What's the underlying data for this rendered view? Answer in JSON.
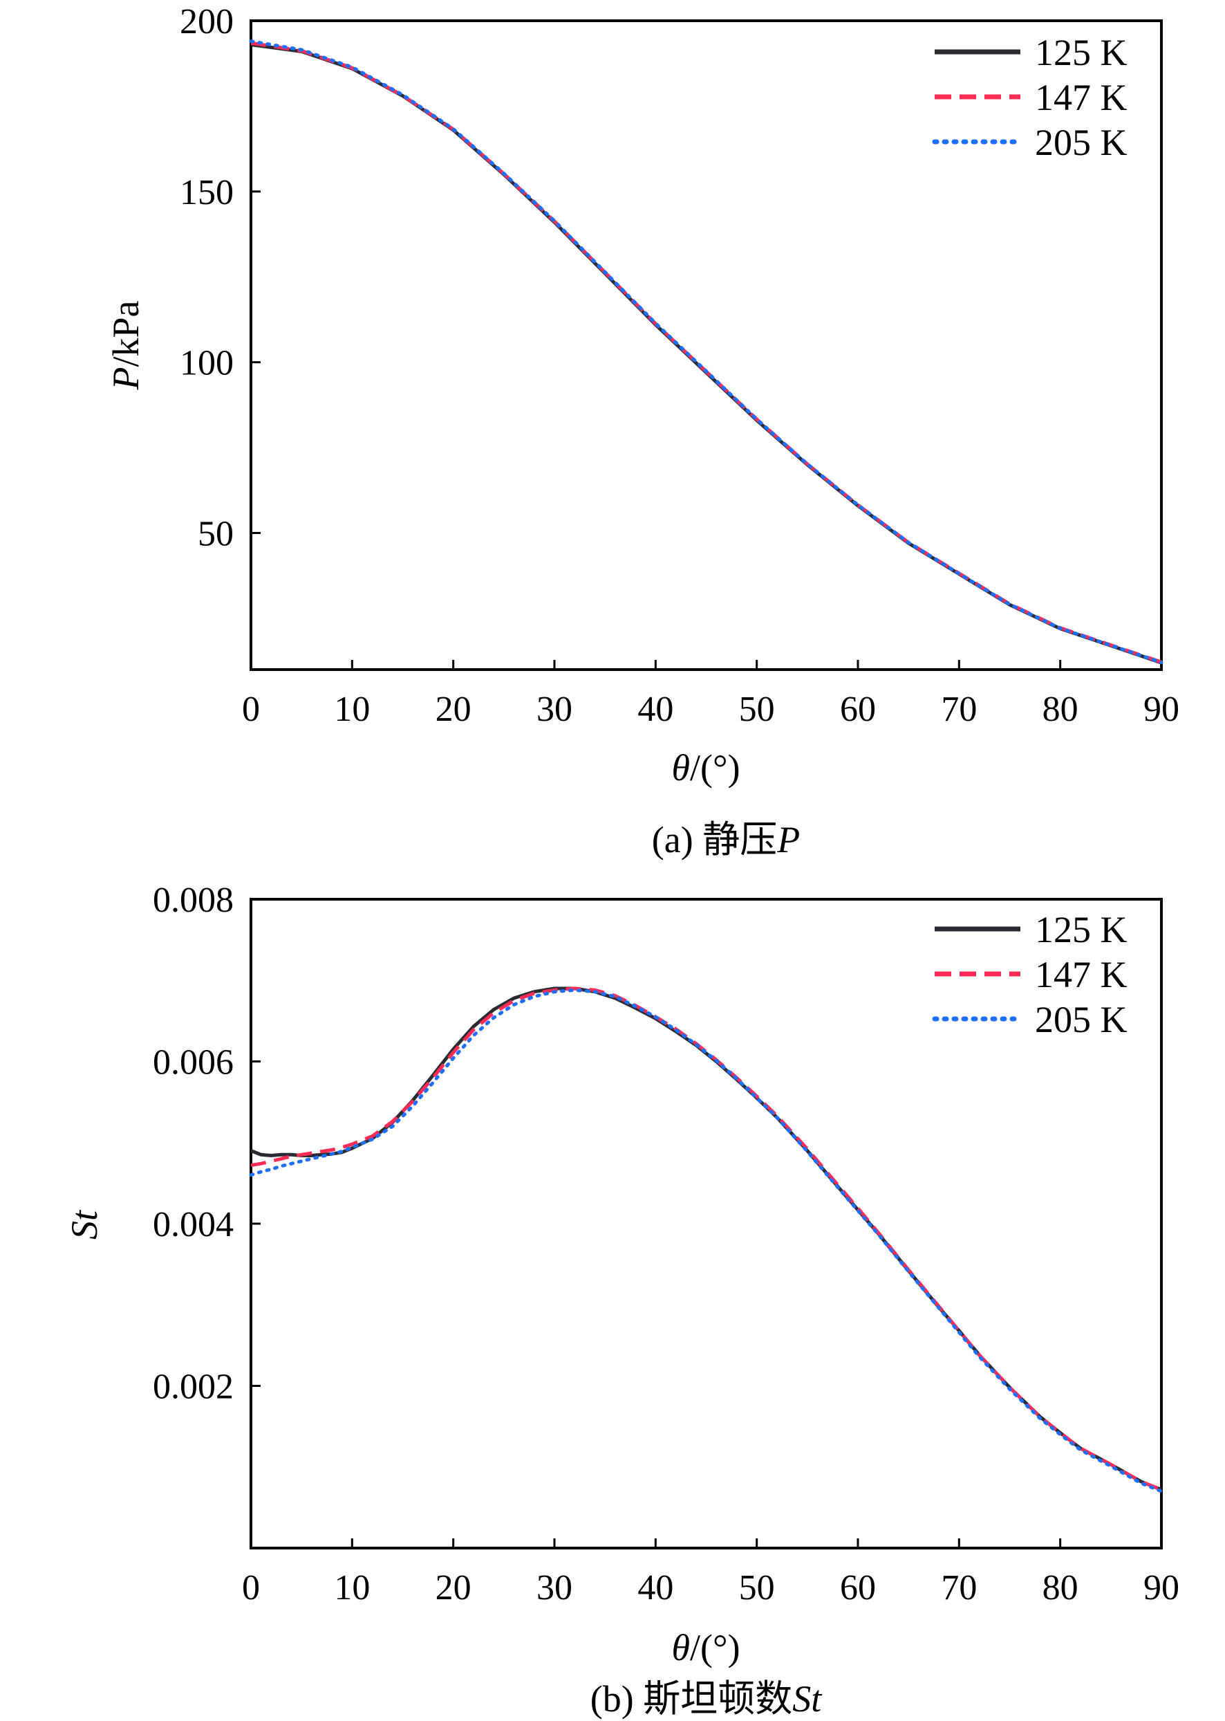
{
  "chart_data": [
    {
      "id": "a",
      "type": "line",
      "caption": "(a) 静压P",
      "caption_parts": {
        "prefix": "(a) 静压",
        "symbol": "P"
      },
      "xlabel": "θ/(°)",
      "xlabel_parts": {
        "symbol": "θ",
        "unit": "/(°)"
      },
      "ylabel": "P/kPa",
      "ylabel_parts": {
        "symbol": "P",
        "unit": "/kPa"
      },
      "xlim": [
        0,
        90
      ],
      "ylim": [
        10,
        200
      ],
      "xticks": [
        0,
        10,
        20,
        30,
        40,
        50,
        60,
        70,
        80,
        90
      ],
      "xtick_labels": [
        "0",
        "10",
        "20",
        "30",
        "40",
        "50",
        "60",
        "70",
        "80",
        "90"
      ],
      "yticks": [
        50,
        100,
        150,
        200
      ],
      "ytick_labels": [
        "50",
        "100",
        "150",
        "200"
      ],
      "grid": false,
      "legend_position": "top-right",
      "x": [
        0,
        5,
        10,
        15,
        20,
        25,
        30,
        35,
        40,
        45,
        50,
        55,
        60,
        65,
        70,
        75,
        80,
        85,
        90
      ],
      "series": [
        {
          "name": "125 K",
          "color": "#2b2b33",
          "style": "solid",
          "values": [
            193,
            191,
            186,
            178,
            168,
            155,
            141,
            126,
            111,
            97,
            83,
            70,
            58,
            47,
            38,
            29,
            22,
            17,
            12
          ]
        },
        {
          "name": "147 K",
          "color": "#ff2d55",
          "style": "dashed",
          "values": [
            193.5,
            191.2,
            186.2,
            178.1,
            168.2,
            155.2,
            141.3,
            126.3,
            111.3,
            97.3,
            83.3,
            70.2,
            58.2,
            47.2,
            38.2,
            29.2,
            22.2,
            17.2,
            12.2
          ]
        },
        {
          "name": "205 K",
          "color": "#1f6fff",
          "style": "dotted",
          "values": [
            194,
            191.5,
            186.4,
            178.3,
            168.3,
            155.3,
            141.4,
            126.4,
            111.4,
            97.4,
            83.3,
            70.2,
            58.2,
            47.2,
            38.1,
            29.1,
            22.1,
            17.1,
            12.1
          ]
        }
      ]
    },
    {
      "id": "b",
      "type": "line",
      "caption": "(b) 斯坦顿数St",
      "caption_parts": {
        "prefix": "(b) 斯坦顿数",
        "symbol": "St"
      },
      "xlabel": "θ/(°)",
      "xlabel_parts": {
        "symbol": "θ",
        "unit": "/(°)"
      },
      "ylabel": "St",
      "ylabel_parts": {
        "symbol": "St",
        "unit": ""
      },
      "xlim": [
        0,
        90
      ],
      "ylim": [
        0,
        0.008
      ],
      "xticks": [
        0,
        10,
        20,
        30,
        40,
        50,
        60,
        70,
        80,
        90
      ],
      "xtick_labels": [
        "0",
        "10",
        "20",
        "30",
        "40",
        "50",
        "60",
        "70",
        "80",
        "90"
      ],
      "yticks": [
        0.002,
        0.004,
        0.006,
        0.008
      ],
      "ytick_labels": [
        "0.002",
        "0.004",
        "0.006",
        "0.008"
      ],
      "grid": false,
      "legend_position": "top-right",
      "x": [
        0,
        1,
        2,
        3,
        4,
        5,
        6,
        7,
        8,
        9,
        10,
        12,
        14,
        16,
        18,
        20,
        22,
        24,
        26,
        28,
        30,
        32,
        34,
        36,
        38,
        40,
        42,
        44,
        46,
        48,
        50,
        52,
        55,
        58,
        60,
        62,
        65,
        68,
        70,
        72,
        75,
        78,
        80,
        82,
        85,
        88,
        90
      ],
      "series": [
        {
          "name": "125 K",
          "color": "#2b2b33",
          "style": "solid",
          "values": [
            0.0049,
            0.00485,
            0.00484,
            0.00485,
            0.00485,
            0.00484,
            0.00484,
            0.00485,
            0.00486,
            0.00488,
            0.00493,
            0.00505,
            0.00525,
            0.00552,
            0.00583,
            0.00615,
            0.00643,
            0.00664,
            0.00678,
            0.00686,
            0.0069,
            0.0069,
            0.00686,
            0.00678,
            0.00666,
            0.00653,
            0.00637,
            0.0062,
            0.006,
            0.00578,
            0.00555,
            0.00531,
            0.0049,
            0.00446,
            0.00417,
            0.00388,
            0.00342,
            0.00297,
            0.00268,
            0.00238,
            0.00198,
            0.00162,
            0.00142,
            0.00123,
            0.00103,
            0.00082,
            0.00072
          ]
        },
        {
          "name": "147 K",
          "color": "#ff2d55",
          "style": "dashed",
          "values": [
            0.00472,
            0.00474,
            0.00477,
            0.0048,
            0.00483,
            0.00485,
            0.00487,
            0.00489,
            0.00491,
            0.00494,
            0.00498,
            0.00508,
            0.00526,
            0.00551,
            0.0058,
            0.00611,
            0.00639,
            0.0066,
            0.00675,
            0.00684,
            0.00688,
            0.0069,
            0.00688,
            0.00681,
            0.00669,
            0.00655,
            0.0064,
            0.00622,
            0.00602,
            0.0058,
            0.00557,
            0.00533,
            0.00492,
            0.00448,
            0.00419,
            0.00389,
            0.00343,
            0.00298,
            0.00268,
            0.00238,
            0.00198,
            0.00162,
            0.00142,
            0.00123,
            0.00103,
            0.00082,
            0.00072
          ]
        },
        {
          "name": "205 K",
          "color": "#1f6fff",
          "style": "dotted",
          "values": [
            0.0046,
            0.00464,
            0.00467,
            0.00471,
            0.00474,
            0.00477,
            0.0048,
            0.00483,
            0.00486,
            0.00489,
            0.00494,
            0.00504,
            0.0052,
            0.00545,
            0.00574,
            0.00604,
            0.00632,
            0.00654,
            0.0067,
            0.0068,
            0.00686,
            0.00688,
            0.00686,
            0.0068,
            0.00668,
            0.00655,
            0.00639,
            0.00621,
            0.00601,
            0.00579,
            0.00555,
            0.00531,
            0.00489,
            0.00445,
            0.00416,
            0.00387,
            0.00341,
            0.00296,
            0.00266,
            0.00236,
            0.00196,
            0.0016,
            0.0014,
            0.00121,
            0.00101,
            0.0008,
            0.0007
          ]
        }
      ]
    }
  ]
}
